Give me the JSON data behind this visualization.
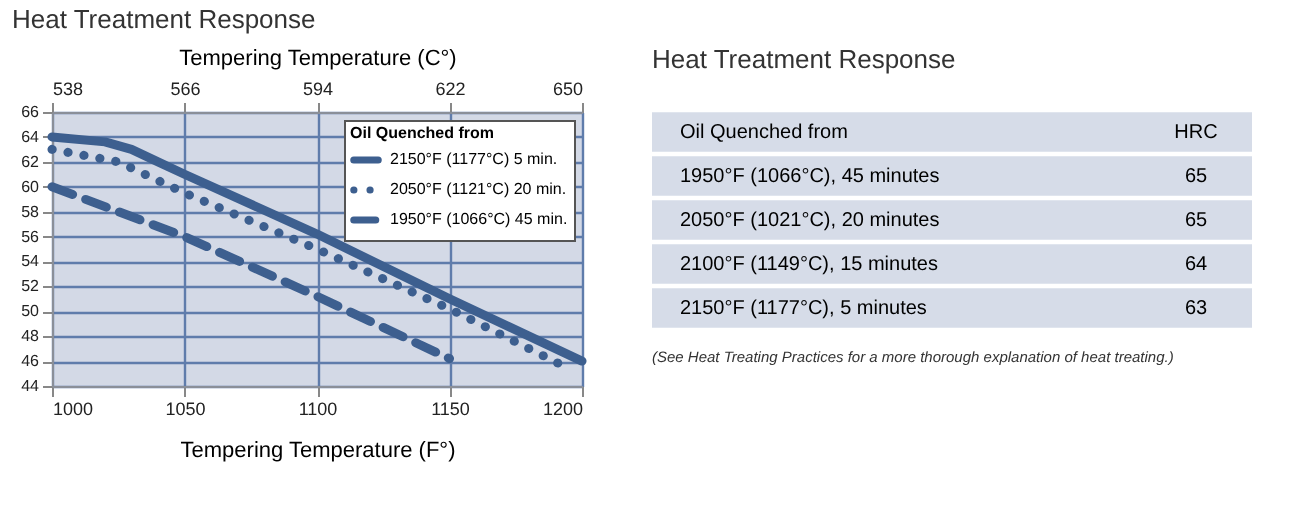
{
  "chart_data": [
    {
      "type": "line",
      "title": "Heat Treatment Response",
      "xlabel": "Tempering Temperature (F°)",
      "x2label": "Tempering Temperature (C°)",
      "legend_title": "Oil Quenched from",
      "legend": "top right",
      "grid": true,
      "xlim": [
        1000,
        1200
      ],
      "xticks": [
        1000,
        1050,
        1100,
        1150,
        1200
      ],
      "x2lim": [
        538,
        650
      ],
      "x2ticks": [
        538,
        566,
        594,
        622,
        650
      ],
      "ylim": [
        44,
        66
      ],
      "yticks": [
        44,
        46,
        48,
        50,
        52,
        54,
        56,
        58,
        60,
        62,
        64,
        66
      ],
      "series": [
        {
          "name": "2150°F (1177°C) 5 min.",
          "color": "#3d5f8f",
          "line_style": "solid",
          "x": [
            1000,
            1020,
            1030,
            1040,
            1050,
            1100,
            1150,
            1200
          ],
          "values": [
            64,
            63.6,
            63,
            62,
            61,
            56.2,
            51,
            46
          ]
        },
        {
          "name": "2050°F (1121°C) 20 min.",
          "color": "#3d5f8f",
          "line_style": "dotted",
          "x": [
            1000,
            1025,
            1050,
            1100,
            1150,
            1195
          ],
          "values": [
            63,
            62,
            59.5,
            55,
            50.2,
            45.4
          ]
        },
        {
          "name": "1950°F (1066°C) 45 min.",
          "color": "#3d5f8f",
          "line_style": "dashed",
          "x": [
            1000,
            1050,
            1100,
            1150
          ],
          "values": [
            60,
            56,
            51.2,
            46.2
          ]
        }
      ]
    },
    {
      "type": "other",
      "title": "Heat Treatment Response",
      "xlabel": "Oil Quenched from",
      "ylabel": "HRC",
      "data_labels": true,
      "categories": [
        "1950°F (1066°C), 45 minutes",
        "2050°F (1021°C), 20 minutes",
        "2100°F (1149°C), 15 minutes",
        "2150°F (1177°C), 5 minutes"
      ],
      "values": [
        65,
        65,
        64,
        63
      ],
      "annotations": [
        "(See Heat Treating Practices for a more thorough explanation of heat treating.)"
      ]
    }
  ]
}
